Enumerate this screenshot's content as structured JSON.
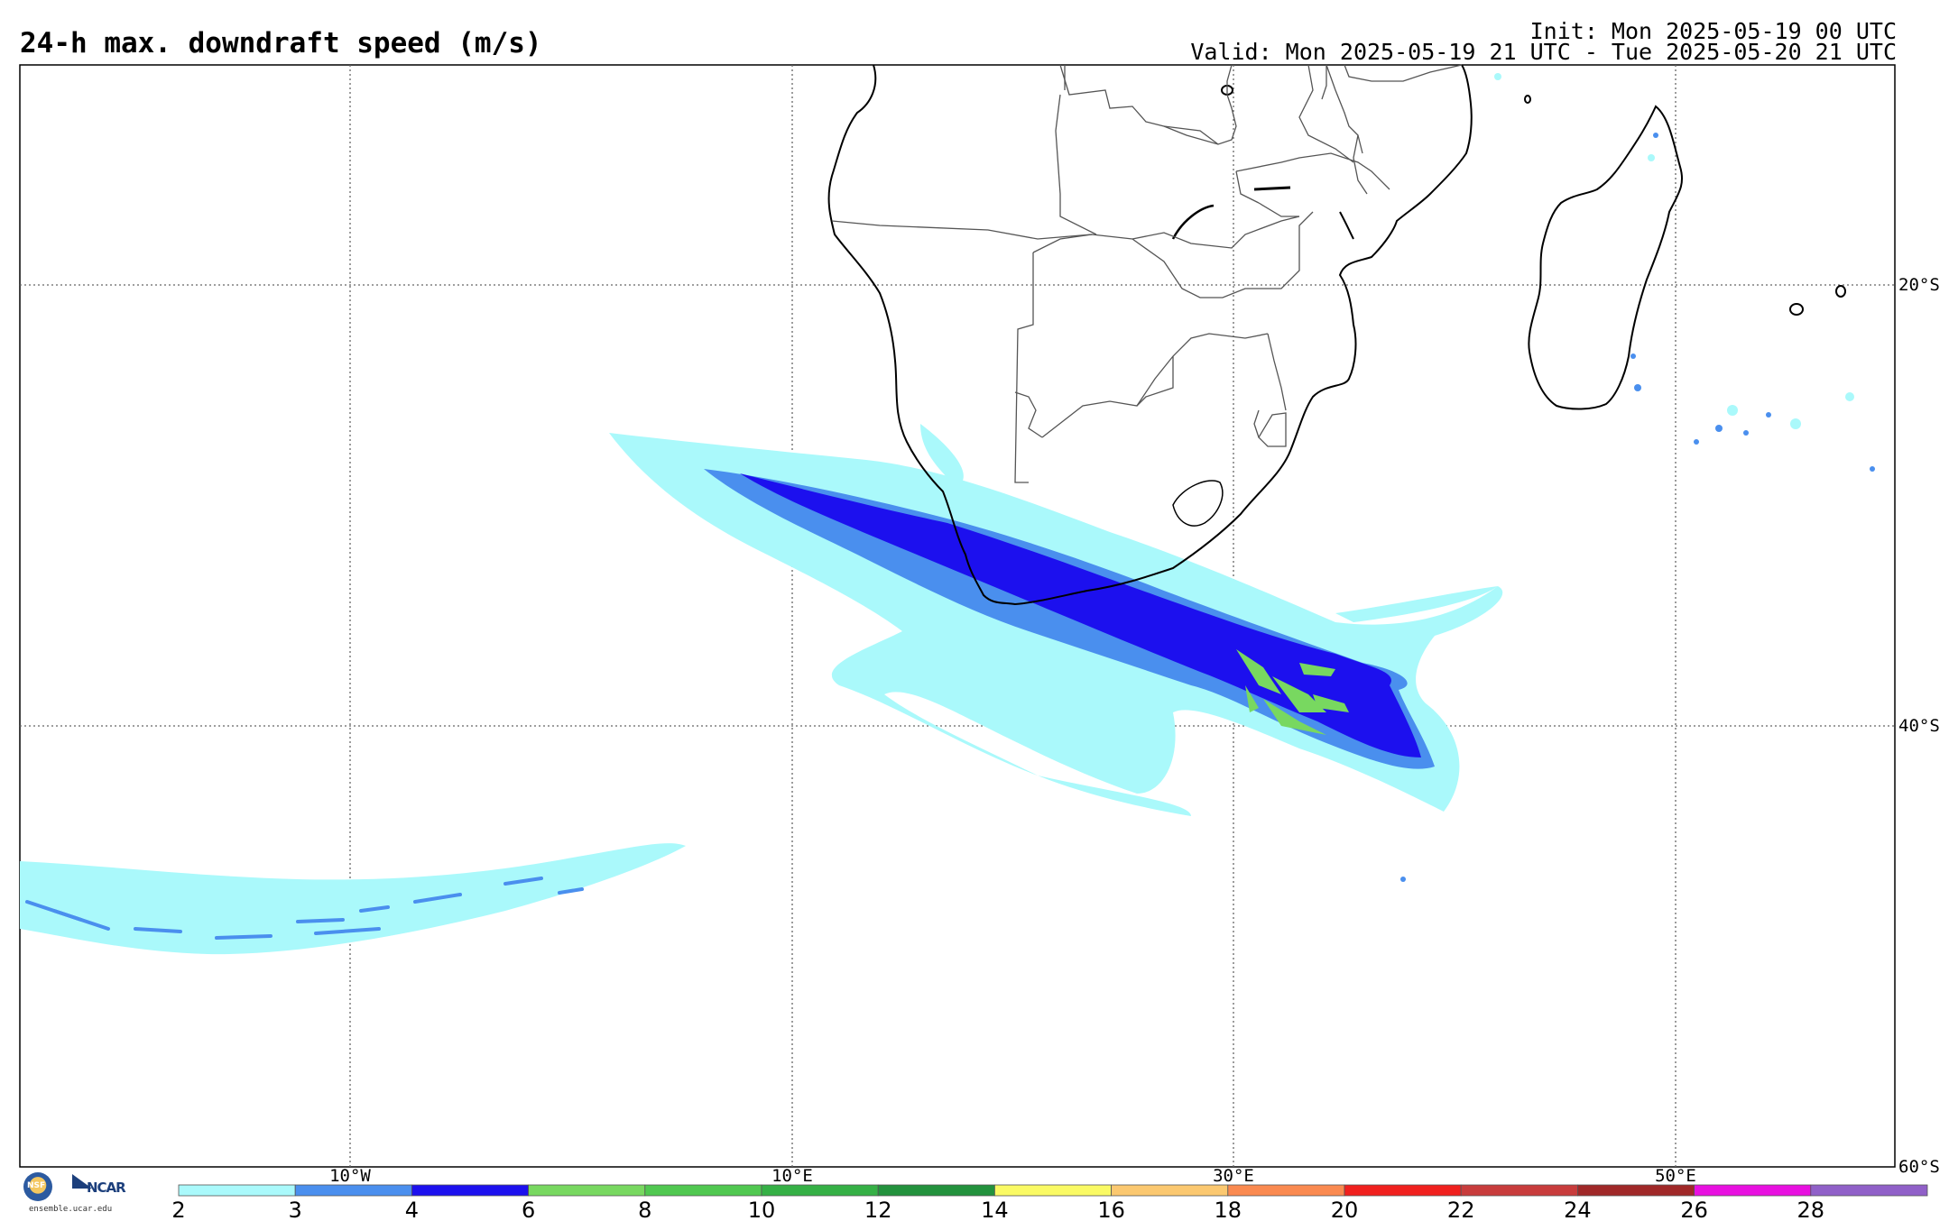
{
  "header": {
    "title": "24-h max. downdraft speed (m/s)",
    "init": "Init: Mon 2025-05-19 00 UTC",
    "valid": "Valid: Mon 2025-05-19 21 UTC - Tue 2025-05-20 21 UTC"
  },
  "map": {
    "lon_labels": [
      "10°W",
      "10°E",
      "30°E",
      "50°E"
    ],
    "lat_labels": [
      "20°S",
      "40°S",
      "60°S"
    ],
    "features": [
      "africa-coastline",
      "madagascar",
      "country-borders",
      "downdraft-swath-atlantic",
      "downdraft-swath-south-africa"
    ]
  },
  "colorbar": {
    "ticks": [
      "2",
      "3",
      "4",
      "6",
      "8",
      "10",
      "12",
      "14",
      "16",
      "18",
      "20",
      "22",
      "24",
      "26",
      "28"
    ],
    "colors": [
      "#aaf9fb",
      "#4a8fee",
      "#1c10ee",
      "#78d860",
      "#50c850",
      "#35b045",
      "#23923d",
      "#fafa64",
      "#fbc870",
      "#fa8a50",
      "#f0201e",
      "#c83c3c",
      "#a02828",
      "#e810e0",
      "#9060c8"
    ]
  },
  "logos": {
    "nsf": "NSF",
    "ncar": "NCAR",
    "site": "ensemble.ucar.edu"
  }
}
